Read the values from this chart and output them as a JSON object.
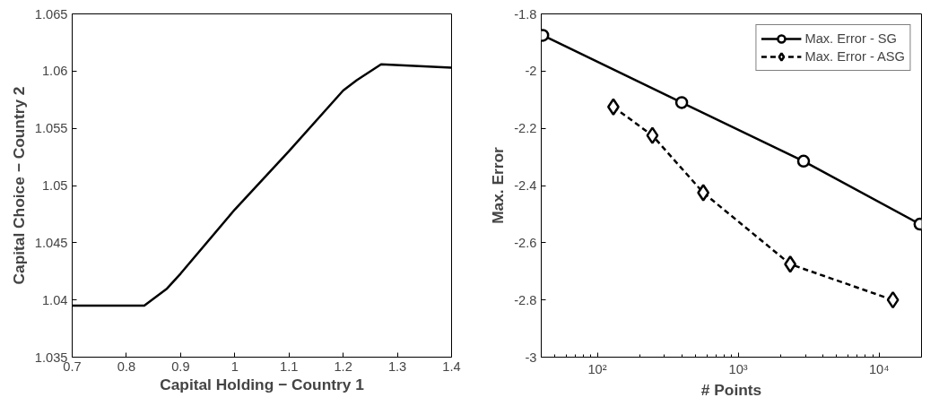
{
  "chart_data": [
    {
      "type": "line",
      "xlabel": "Capital Holding − Country 1",
      "ylabel": "Capital Choice − Country 2",
      "x": [
        0.7,
        0.833,
        0.875,
        0.9,
        1.0,
        1.1,
        1.2,
        1.225,
        1.27,
        1.4
      ],
      "series": [
        {
          "color": "#000000",
          "values": [
            1.0395,
            1.0395,
            1.041,
            1.0423,
            1.0479,
            1.053,
            1.0583,
            1.0592,
            1.0606,
            1.0603
          ]
        }
      ],
      "xlim": [
        0.7,
        1.4
      ],
      "xticks": [
        0.7,
        0.8,
        0.9,
        1,
        1.1,
        1.2,
        1.3,
        1.4
      ],
      "ylim": [
        1.035,
        1.065
      ],
      "yticks": [
        1.035,
        1.04,
        1.045,
        1.05,
        1.055,
        1.06,
        1.065
      ],
      "grid": false,
      "legend": false,
      "line_style": "solid",
      "marker": "none"
    },
    {
      "type": "line",
      "xlabel": "# Points",
      "ylabel": "Max. Error",
      "log": "x",
      "series": [
        {
          "name": "Max. Error - SG",
          "color": "#000000",
          "x": [
            41,
            397,
            2910,
            19500
          ],
          "values": [
            -1.875,
            -2.11,
            -2.315,
            -2.535
          ],
          "marker": "circle",
          "line_style": "solid"
        },
        {
          "name": "Max. Error - ASG",
          "color": "#000000",
          "x": [
            130,
            246,
            565,
            2340,
            12530
          ],
          "values": [
            -2.125,
            -2.225,
            -2.425,
            -2.675,
            -2.8
          ],
          "marker": "diamond",
          "line_style": "dashed"
        }
      ],
      "xlim": [
        40,
        20000
      ],
      "xticks": [
        {
          "value": 100,
          "label": "10²"
        },
        {
          "value": 1000,
          "label": "10³"
        },
        {
          "value": 10000,
          "label": "10⁴"
        }
      ],
      "ylim": [
        -3,
        -1.8
      ],
      "yticks": [
        -3,
        -2.8,
        -2.6,
        -2.4,
        -2.2,
        -2,
        -1.8
      ],
      "grid": false,
      "legend": "top right"
    }
  ]
}
